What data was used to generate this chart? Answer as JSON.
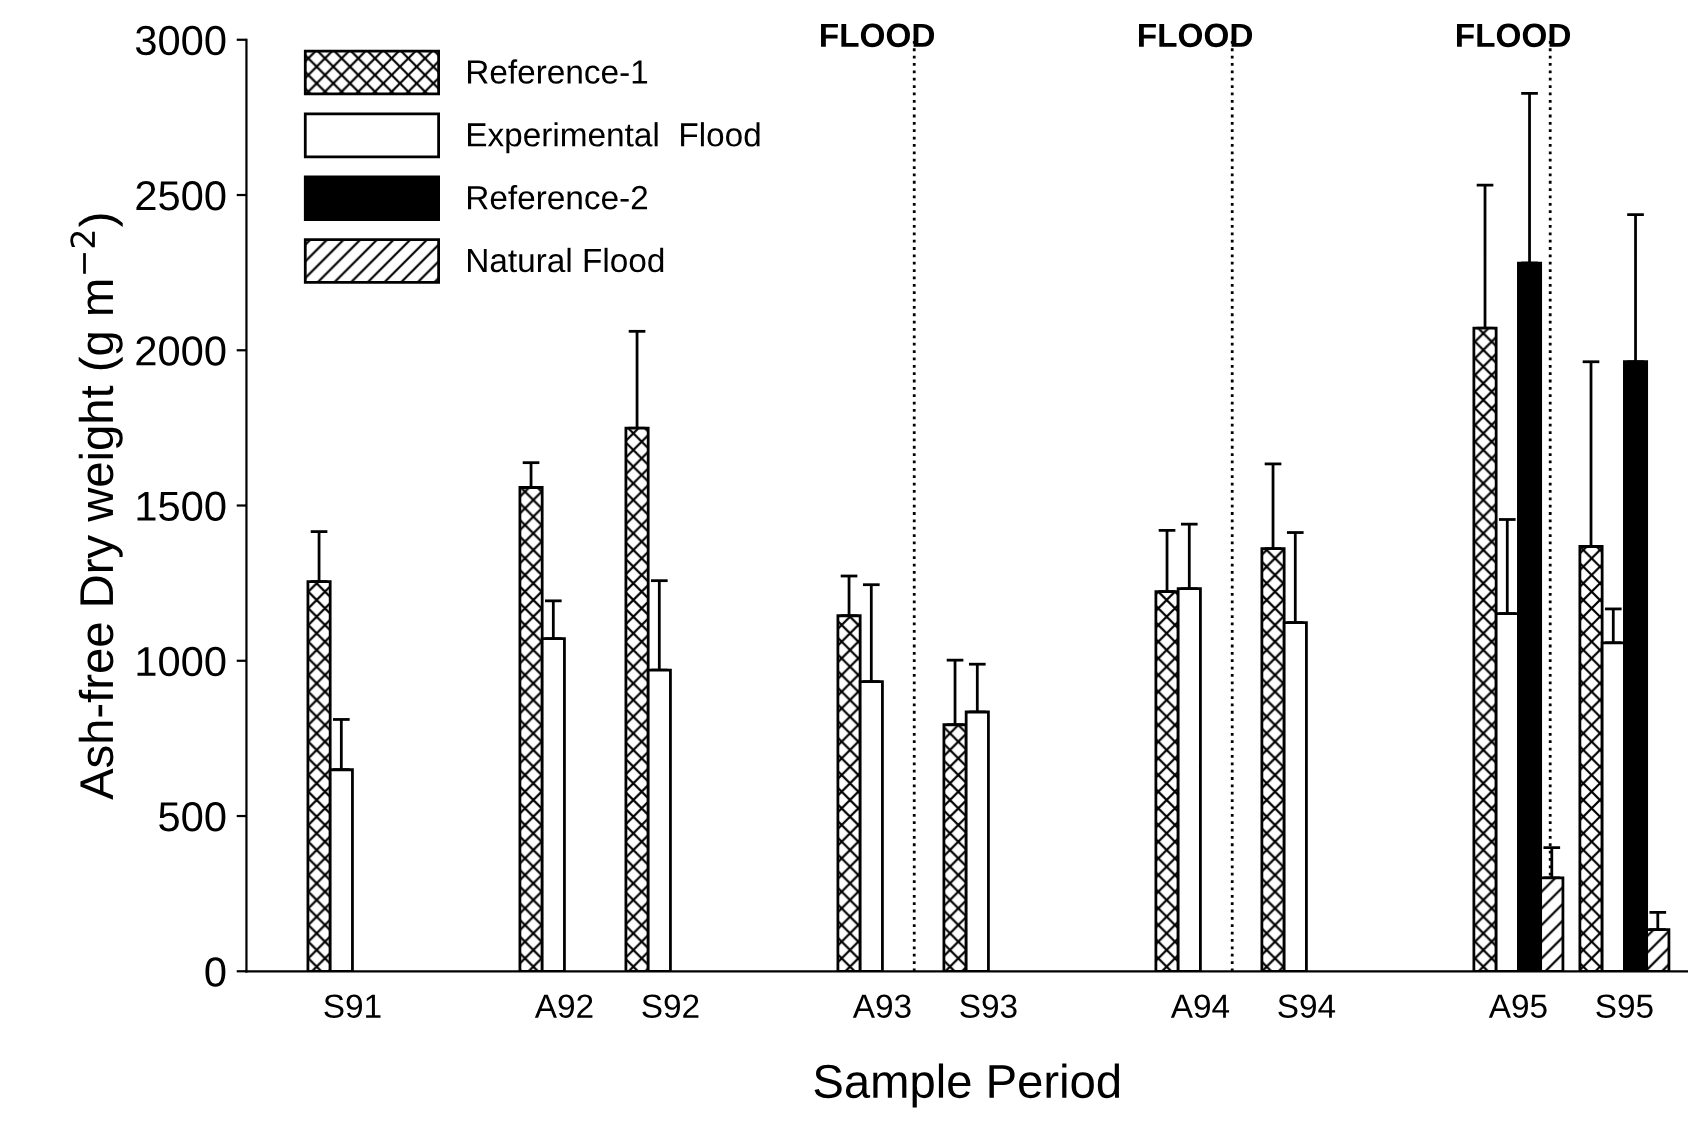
{
  "chart_data": {
    "type": "bar",
    "xlabel": "Sample Period",
    "ylabel": "Ash-free Dry weight (g m$^{−2}$)",
    "categories": [
      "S91",
      null,
      "A92",
      "S92",
      null,
      "A93",
      "S93",
      null,
      "A94",
      "S94",
      null,
      "A95",
      "S95"
    ],
    "series": [
      {
        "name": "Reference-1",
        "color": "#000000",
        "values": [
          1255,
          null,
          1558,
          1749,
          null,
          1145,
          794,
          null,
          1223,
          1361,
          null,
          2071,
          1368
        ],
        "errors": [
          [
            1255,
            1416
          ],
          null,
          [
            1558,
            1638
          ],
          [
            1749,
            2061
          ],
          null,
          [
            1145,
            1273
          ],
          [
            794,
            1002
          ],
          null,
          [
            1223,
            1420
          ],
          [
            1361,
            1634
          ],
          null,
          [
            2071,
            2532
          ],
          [
            1368,
            1963
          ]
        ]
      },
      {
        "name": "Experimental  Flood",
        "color": "#ffffff",
        "values": [
          649,
          null,
          1071,
          970,
          null,
          933,
          835,
          null,
          1232,
          1123,
          null,
          1152,
          1058
        ],
        "errors": [
          [
            649,
            811
          ],
          null,
          [
            1071,
            1193
          ],
          [
            970,
            1258
          ],
          null,
          [
            933,
            1245
          ],
          [
            835,
            989
          ],
          null,
          [
            1232,
            1440
          ],
          [
            1123,
            1413
          ],
          null,
          [
            1152,
            1455
          ],
          [
            1058,
            1167
          ]
        ]
      },
      {
        "name": "Reference-2",
        "color": "#000000",
        "values": [
          null,
          null,
          null,
          null,
          null,
          null,
          null,
          null,
          null,
          null,
          null,
          2281,
          1963
        ],
        "errors": [
          null,
          null,
          null,
          null,
          null,
          null,
          null,
          null,
          null,
          null,
          null,
          [
            2281,
            2827
          ],
          [
            1963,
            2437
          ]
        ]
      },
      {
        "name": "Natural Flood",
        "color": "#000000",
        "values": [
          null,
          null,
          null,
          null,
          null,
          null,
          null,
          null,
          null,
          null,
          null,
          301,
          134
        ],
        "errors": [
          null,
          null,
          null,
          null,
          null,
          null,
          null,
          null,
          null,
          null,
          null,
          [
            301,
            398
          ],
          [
            134,
            190
          ]
        ]
      }
    ],
    "ylim": [
      0,
      3000
    ],
    "yticks": [
      0,
      500,
      1000,
      1500,
      2000,
      2500,
      3000
    ],
    "annotations": [
      "FLOOD",
      "FLOOD",
      "FLOOD"
    ],
    "grid": false,
    "legend": "top left"
  }
}
